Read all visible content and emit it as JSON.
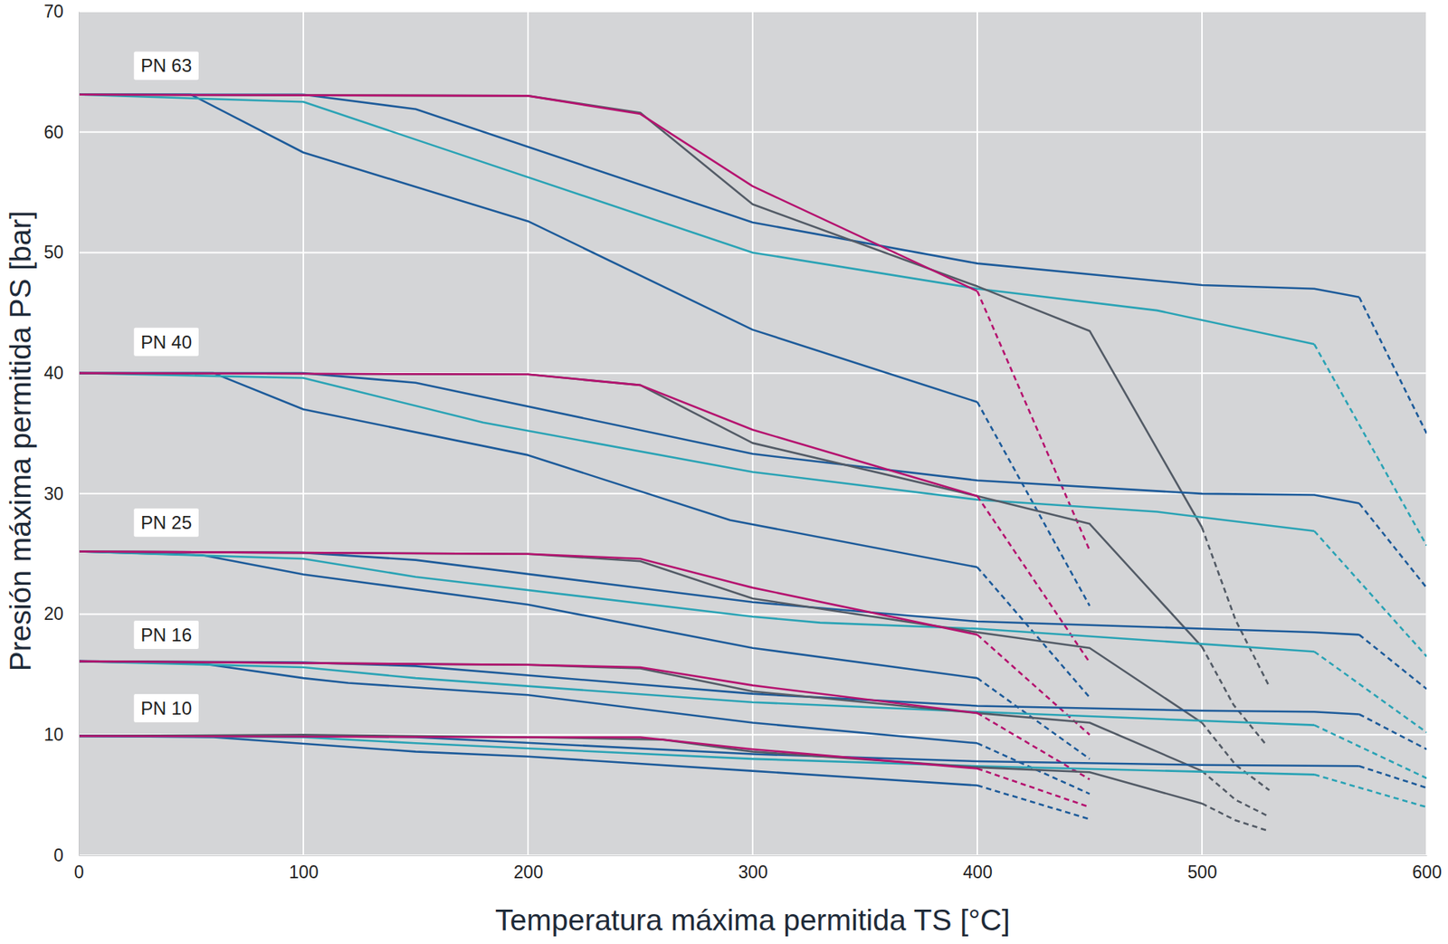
{
  "chart_data": {
    "type": "line",
    "xlabel": "Temperatura máxima permitida TS [°C]",
    "ylabel": "Presión máxima permitida PS [bar]",
    "xlim": [
      0,
      600
    ],
    "ylim": [
      0,
      70
    ],
    "xticks": [
      0,
      100,
      200,
      300,
      400,
      500,
      600
    ],
    "yticks": [
      0,
      10,
      20,
      30,
      40,
      50,
      60,
      70
    ],
    "grid": true,
    "annotations": [
      {
        "text": "PN 63",
        "x": 39,
        "y": 65.5
      },
      {
        "text": "PN 40",
        "x": 39,
        "y": 42.6
      },
      {
        "text": "PN 25",
        "x": 39,
        "y": 27.6
      },
      {
        "text": "PN 16",
        "x": 39,
        "y": 18.3
      },
      {
        "text": "PN 10",
        "x": 39,
        "y": 12.2
      }
    ],
    "series": [
      {
        "color": "#1d5b9a",
        "line_style": "solid",
        "x": [
          0,
          50,
          100,
          200,
          300,
          400
        ],
        "values": [
          63.1,
          63.1,
          58.3,
          52.6,
          43.6,
          37.6
        ]
      },
      {
        "color": "#1d5b9a",
        "line_style": "dashed",
        "x": [
          400,
          450
        ],
        "values": [
          37.6,
          20.7
        ]
      },
      {
        "color": "#2aa3b5",
        "line_style": "solid",
        "x": [
          0,
          100,
          300,
          400,
          480,
          550
        ],
        "values": [
          63.1,
          62.5,
          50.0,
          47.0,
          45.2,
          42.4
        ]
      },
      {
        "color": "#2aa3b5",
        "line_style": "dashed",
        "x": [
          550,
          600
        ],
        "values": [
          42.4,
          25.7
        ]
      },
      {
        "color": "#1d5b9a",
        "line_style": "solid",
        "x": [
          0,
          100,
          150,
          300,
          400,
          500,
          550,
          570
        ],
        "values": [
          63.1,
          63.1,
          61.9,
          52.5,
          49.1,
          47.3,
          47.0,
          46.3
        ]
      },
      {
        "color": "#1d5b9a",
        "line_style": "dashed",
        "x": [
          570,
          600
        ],
        "values": [
          46.3,
          35.0
        ]
      },
      {
        "color": "#535b66",
        "line_style": "solid",
        "x": [
          0,
          200,
          250,
          300,
          400,
          450,
          500
        ],
        "values": [
          63.1,
          63.0,
          61.6,
          54.0,
          47.2,
          43.5,
          27.2
        ]
      },
      {
        "color": "#535b66",
        "line_style": "dashed",
        "x": [
          500,
          515,
          530
        ],
        "values": [
          27.2,
          19.5,
          14.0
        ]
      },
      {
        "color": "#b5136f",
        "line_style": "solid",
        "x": [
          0,
          200,
          250,
          300,
          400
        ],
        "values": [
          63.1,
          63.0,
          61.5,
          55.5,
          46.8
        ]
      },
      {
        "color": "#b5136f",
        "line_style": "dashed",
        "x": [
          400,
          450
        ],
        "values": [
          46.8,
          25.3
        ]
      },
      {
        "color": "#1d5b9a",
        "line_style": "solid",
        "x": [
          0,
          60,
          100,
          200,
          290,
          400
        ],
        "values": [
          40.0,
          40.0,
          37.0,
          33.2,
          27.8,
          23.9
        ]
      },
      {
        "color": "#1d5b9a",
        "line_style": "dashed",
        "x": [
          400,
          450
        ],
        "values": [
          23.9,
          13.1
        ]
      },
      {
        "color": "#2aa3b5",
        "line_style": "solid",
        "x": [
          0,
          100,
          180,
          300,
          400,
          480,
          550
        ],
        "values": [
          40.0,
          39.6,
          35.9,
          31.8,
          29.5,
          28.5,
          26.9
        ]
      },
      {
        "color": "#2aa3b5",
        "line_style": "dashed",
        "x": [
          550,
          600
        ],
        "values": [
          26.9,
          16.5
        ]
      },
      {
        "color": "#1d5b9a",
        "line_style": "solid",
        "x": [
          0,
          100,
          150,
          300,
          400,
          500,
          550,
          570
        ],
        "values": [
          40.0,
          40.0,
          39.2,
          33.3,
          31.1,
          30.0,
          29.9,
          29.2
        ]
      },
      {
        "color": "#1d5b9a",
        "line_style": "dashed",
        "x": [
          570,
          600
        ],
        "values": [
          29.2,
          22.2
        ]
      },
      {
        "color": "#535b66",
        "line_style": "solid",
        "x": [
          0,
          200,
          250,
          300,
          400,
          450,
          500
        ],
        "values": [
          40.0,
          39.9,
          39.0,
          34.2,
          29.8,
          27.5,
          17.3
        ]
      },
      {
        "color": "#535b66",
        "line_style": "dashed",
        "x": [
          500,
          514,
          528
        ],
        "values": [
          17.3,
          12.5,
          9.3
        ]
      },
      {
        "color": "#b5136f",
        "line_style": "solid",
        "x": [
          0,
          200,
          250,
          300,
          400
        ],
        "values": [
          40.0,
          39.9,
          39.0,
          35.3,
          29.8
        ]
      },
      {
        "color": "#b5136f",
        "line_style": "dashed",
        "x": [
          400,
          450
        ],
        "values": [
          29.8,
          16.0
        ]
      },
      {
        "color": "#1d5b9a",
        "line_style": "solid",
        "x": [
          0,
          55,
          100,
          200,
          300,
          400
        ],
        "values": [
          25.2,
          24.9,
          23.3,
          20.8,
          17.2,
          14.7
        ]
      },
      {
        "color": "#1d5b9a",
        "line_style": "dashed",
        "x": [
          400,
          450
        ],
        "values": [
          14.7,
          8.0
        ]
      },
      {
        "color": "#2aa3b5",
        "line_style": "solid",
        "x": [
          0,
          100,
          150,
          300,
          330,
          400,
          550
        ],
        "values": [
          25.2,
          24.6,
          23.1,
          19.8,
          19.3,
          18.8,
          16.9
        ]
      },
      {
        "color": "#2aa3b5",
        "line_style": "dashed",
        "x": [
          550,
          600
        ],
        "values": [
          16.9,
          10.2
        ]
      },
      {
        "color": "#1d5b9a",
        "line_style": "solid",
        "x": [
          0,
          100,
          150,
          300,
          400,
          500,
          550,
          570
        ],
        "values": [
          25.2,
          25.1,
          24.5,
          21.0,
          19.4,
          18.8,
          18.5,
          18.3
        ]
      },
      {
        "color": "#1d5b9a",
        "line_style": "dashed",
        "x": [
          570,
          600
        ],
        "values": [
          18.3,
          13.8
        ]
      },
      {
        "color": "#535b66",
        "line_style": "solid",
        "x": [
          0,
          200,
          250,
          300,
          400,
          450,
          500
        ],
        "values": [
          25.2,
          25.0,
          24.4,
          21.3,
          18.5,
          17.2,
          11.0
        ]
      },
      {
        "color": "#535b66",
        "line_style": "dashed",
        "x": [
          500,
          515,
          530
        ],
        "values": [
          11.0,
          7.5,
          5.4
        ]
      },
      {
        "color": "#b5136f",
        "line_style": "solid",
        "x": [
          0,
          200,
          250,
          300,
          400
        ],
        "values": [
          25.2,
          25.0,
          24.6,
          22.2,
          18.3
        ]
      },
      {
        "color": "#b5136f",
        "line_style": "dashed",
        "x": [
          400,
          450
        ],
        "values": [
          18.3,
          10.0
        ]
      },
      {
        "color": "#1d5b9a",
        "line_style": "solid",
        "x": [
          0,
          55,
          100,
          120,
          200,
          300,
          400
        ],
        "values": [
          16.1,
          15.9,
          14.7,
          14.3,
          13.3,
          11.0,
          9.3
        ]
      },
      {
        "color": "#1d5b9a",
        "line_style": "dashed",
        "x": [
          400,
          450
        ],
        "values": [
          9.3,
          5.1
        ]
      },
      {
        "color": "#2aa3b5",
        "line_style": "solid",
        "x": [
          0,
          100,
          150,
          300,
          400,
          550
        ],
        "values": [
          16.1,
          15.6,
          14.7,
          12.7,
          11.9,
          10.8
        ]
      },
      {
        "color": "#2aa3b5",
        "line_style": "dashed",
        "x": [
          550,
          600
        ],
        "values": [
          10.8,
          6.4
        ]
      },
      {
        "color": "#1d5b9a",
        "line_style": "solid",
        "x": [
          0,
          100,
          150,
          300,
          400,
          500,
          550,
          570
        ],
        "values": [
          16.1,
          16.0,
          15.7,
          13.4,
          12.4,
          12.0,
          11.9,
          11.7
        ]
      },
      {
        "color": "#1d5b9a",
        "line_style": "dashed",
        "x": [
          570,
          600
        ],
        "values": [
          11.7,
          8.8
        ]
      },
      {
        "color": "#535b66",
        "line_style": "solid",
        "x": [
          0,
          200,
          250,
          300,
          400,
          450,
          500
        ],
        "values": [
          16.1,
          15.8,
          15.5,
          13.6,
          11.8,
          11.0,
          7.0
        ]
      },
      {
        "color": "#535b66",
        "line_style": "dashed",
        "x": [
          500,
          515,
          530
        ],
        "values": [
          7.0,
          4.6,
          3.2
        ]
      },
      {
        "color": "#b5136f",
        "line_style": "solid",
        "x": [
          0,
          200,
          250,
          300,
          400
        ],
        "values": [
          16.1,
          15.8,
          15.6,
          14.1,
          11.8
        ]
      },
      {
        "color": "#b5136f",
        "line_style": "dashed",
        "x": [
          400,
          450
        ],
        "values": [
          11.8,
          6.3
        ]
      },
      {
        "color": "#1d5b9a",
        "line_style": "solid",
        "x": [
          0,
          60,
          150,
          200,
          300,
          400
        ],
        "values": [
          9.9,
          9.8,
          8.6,
          8.2,
          7.0,
          5.8
        ]
      },
      {
        "color": "#1d5b9a",
        "line_style": "dashed",
        "x": [
          400,
          450
        ],
        "values": [
          5.8,
          3.0
        ]
      },
      {
        "color": "#2aa3b5",
        "line_style": "solid",
        "x": [
          0,
          100,
          150,
          300,
          400,
          550
        ],
        "values": [
          9.9,
          9.8,
          9.3,
          8.0,
          7.4,
          6.7
        ]
      },
      {
        "color": "#2aa3b5",
        "line_style": "dashed",
        "x": [
          550,
          600
        ],
        "values": [
          6.7,
          4.0
        ]
      },
      {
        "color": "#1d5b9a",
        "line_style": "solid",
        "x": [
          0,
          100,
          150,
          300,
          400,
          500,
          570
        ],
        "values": [
          9.9,
          9.9,
          9.8,
          8.4,
          7.8,
          7.5,
          7.4
        ]
      },
      {
        "color": "#1d5b9a",
        "line_style": "dashed",
        "x": [
          570,
          600
        ],
        "values": [
          7.4,
          5.6
        ]
      },
      {
        "color": "#535b66",
        "line_style": "solid",
        "x": [
          0,
          100,
          200,
          260,
          300,
          400,
          450,
          500
        ],
        "values": [
          9.9,
          10.0,
          9.8,
          9.6,
          8.6,
          7.3,
          6.9,
          4.3
        ]
      },
      {
        "color": "#535b66",
        "line_style": "dashed",
        "x": [
          500,
          515,
          530
        ],
        "values": [
          4.3,
          2.9,
          2.0
        ]
      },
      {
        "color": "#b5136f",
        "line_style": "solid",
        "x": [
          0,
          200,
          250,
          300,
          400
        ],
        "values": [
          9.9,
          9.8,
          9.8,
          8.8,
          7.2
        ]
      },
      {
        "color": "#b5136f",
        "line_style": "dashed",
        "x": [
          400,
          450
        ],
        "values": [
          7.2,
          4.0
        ]
      }
    ]
  }
}
